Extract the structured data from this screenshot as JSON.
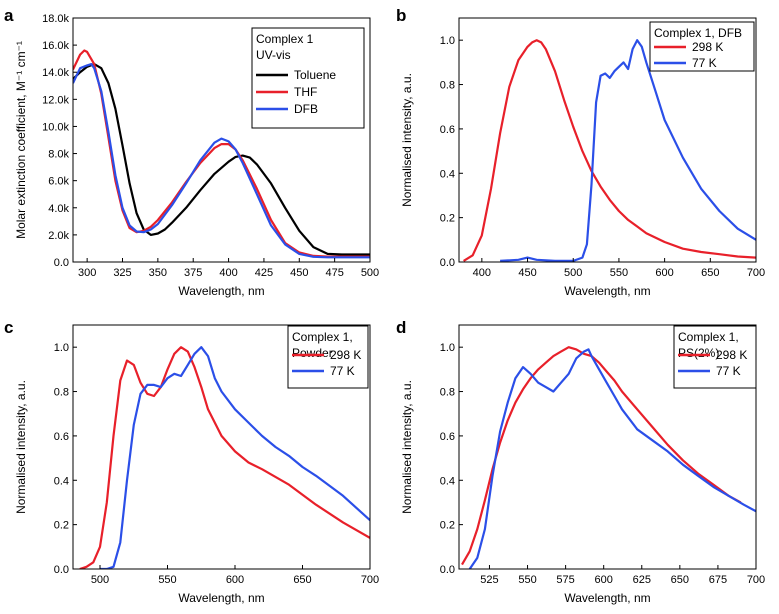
{
  "figure": {
    "panels": [
      {
        "letter": "a",
        "legend_title": [
          "Complex 1",
          "UV-vis"
        ]
      },
      {
        "letter": "b",
        "legend_title": [
          "Complex 1, DFB"
        ]
      },
      {
        "letter": "c",
        "legend_title": [
          "Complex 1,",
          "Powder"
        ]
      },
      {
        "letter": "d",
        "legend_title": [
          "Complex 1,",
          "PS(2%)"
        ]
      }
    ]
  },
  "chart_data": [
    {
      "type": "line",
      "panel": "a",
      "xlabel": "Wavelength, nm",
      "ylabel": "Molar extinction coefficient, M⁻¹ cm⁻¹",
      "xlim": [
        290,
        500
      ],
      "ylim": [
        0,
        18000
      ],
      "xticks": [
        300,
        325,
        350,
        375,
        400,
        425,
        450,
        475,
        500
      ],
      "xtick_labels": [
        "300",
        "325",
        "350",
        "375",
        "400",
        "425",
        "450",
        "475",
        "500"
      ],
      "yticks": [
        0,
        2000,
        4000,
        6000,
        8000,
        10000,
        12000,
        14000,
        16000,
        18000
      ],
      "ytick_labels": [
        "0.0",
        "2.0k",
        "4.0k",
        "6.0k",
        "8.0k",
        "10.0k",
        "12.0k",
        "14.0k",
        "16.0k",
        "18.0k"
      ],
      "legend_position": "top-right",
      "series": [
        {
          "name": "Toluene",
          "color": "#000000",
          "x": [
            290,
            295,
            300,
            305,
            310,
            315,
            320,
            325,
            330,
            335,
            340,
            345,
            350,
            355,
            360,
            370,
            380,
            390,
            400,
            405,
            410,
            415,
            420,
            430,
            440,
            450,
            460,
            470,
            480,
            500
          ],
          "y": [
            13500,
            14000,
            14400,
            14600,
            14300,
            13200,
            11300,
            8600,
            5800,
            3600,
            2400,
            2000,
            2100,
            2400,
            2900,
            4000,
            5300,
            6500,
            7400,
            7750,
            7850,
            7700,
            7200,
            5800,
            4000,
            2300,
            1100,
            600,
            550,
            550
          ]
        },
        {
          "name": "THF",
          "color": "#e8202a",
          "x": [
            290,
            295,
            298,
            300,
            305,
            310,
            315,
            320,
            325,
            330,
            335,
            340,
            345,
            350,
            360,
            370,
            380,
            390,
            395,
            400,
            405,
            410,
            420,
            430,
            440,
            450,
            460,
            470,
            480,
            500
          ],
          "y": [
            14200,
            15300,
            15600,
            15500,
            14600,
            12400,
            9200,
            6000,
            3800,
            2500,
            2200,
            2300,
            2600,
            3100,
            4400,
            5900,
            7300,
            8400,
            8700,
            8700,
            8300,
            7500,
            5400,
            3100,
            1400,
            700,
            450,
            400,
            400,
            400
          ]
        },
        {
          "name": "DFB",
          "color": "#2b4fe8",
          "x": [
            290,
            295,
            300,
            303,
            305,
            310,
            315,
            320,
            325,
            330,
            335,
            340,
            345,
            350,
            360,
            370,
            380,
            390,
            395,
            400,
            405,
            410,
            420,
            430,
            440,
            450,
            460,
            470,
            480,
            500
          ],
          "y": [
            13200,
            14300,
            14500,
            14600,
            14300,
            12600,
            9600,
            6400,
            4000,
            2700,
            2250,
            2200,
            2400,
            2800,
            4200,
            5800,
            7500,
            8800,
            9100,
            8900,
            8300,
            7300,
            5000,
            2700,
            1300,
            600,
            380,
            350,
            350,
            350
          ]
        }
      ]
    },
    {
      "type": "line",
      "panel": "b",
      "xlabel": "Wavelength, nm",
      "ylabel": "Normalised intensity, a.u.",
      "xlim": [
        375,
        700
      ],
      "ylim": [
        0,
        1.1
      ],
      "xticks": [
        400,
        450,
        500,
        550,
        600,
        650,
        700
      ],
      "xtick_labels": [
        "400",
        "450",
        "500",
        "550",
        "600",
        "650",
        "700"
      ],
      "yticks": [
        0,
        0.2,
        0.4,
        0.6,
        0.8,
        1.0
      ],
      "ytick_labels": [
        "0.0",
        "0.2",
        "0.4",
        "0.6",
        "0.8",
        "1.0"
      ],
      "legend_position": "top-right",
      "series": [
        {
          "name": "298 K",
          "color": "#e8202a",
          "x": [
            380,
            390,
            400,
            410,
            420,
            430,
            440,
            450,
            455,
            460,
            465,
            470,
            480,
            490,
            500,
            510,
            520,
            530,
            540,
            550,
            560,
            570,
            580,
            600,
            620,
            640,
            660,
            680,
            700
          ],
          "y": [
            0.005,
            0.03,
            0.12,
            0.33,
            0.58,
            0.79,
            0.91,
            0.97,
            0.99,
            1.0,
            0.99,
            0.96,
            0.86,
            0.73,
            0.61,
            0.5,
            0.41,
            0.34,
            0.28,
            0.23,
            0.19,
            0.16,
            0.13,
            0.09,
            0.06,
            0.045,
            0.035,
            0.025,
            0.02
          ]
        },
        {
          "name": "77 K",
          "color": "#2b4fe8",
          "x": [
            420,
            440,
            450,
            460,
            480,
            500,
            510,
            515,
            520,
            525,
            530,
            535,
            540,
            545,
            550,
            555,
            560,
            565,
            570,
            575,
            580,
            590,
            600,
            620,
            640,
            660,
            680,
            700
          ],
          "y": [
            0.005,
            0.01,
            0.02,
            0.01,
            0.005,
            0.005,
            0.02,
            0.08,
            0.35,
            0.72,
            0.84,
            0.85,
            0.83,
            0.86,
            0.88,
            0.9,
            0.87,
            0.96,
            1.0,
            0.97,
            0.9,
            0.77,
            0.64,
            0.47,
            0.33,
            0.23,
            0.15,
            0.1
          ]
        }
      ]
    },
    {
      "type": "line",
      "panel": "c",
      "xlabel": "Wavelength, nm",
      "ylabel": "Normalised intensity, a.u.",
      "xlim": [
        480,
        700
      ],
      "ylim": [
        0,
        1.1
      ],
      "xticks": [
        500,
        550,
        600,
        650,
        700
      ],
      "xtick_labels": [
        "500",
        "550",
        "600",
        "650",
        "700"
      ],
      "yticks": [
        0,
        0.2,
        0.4,
        0.6,
        0.8,
        1.0
      ],
      "ytick_labels": [
        "0.0",
        "0.2",
        "0.4",
        "0.6",
        "0.8",
        "1.0"
      ],
      "legend_position": "top-right",
      "series": [
        {
          "name": "298 K",
          "color": "#e8202a",
          "x": [
            485,
            490,
            495,
            500,
            505,
            510,
            515,
            520,
            525,
            530,
            535,
            540,
            545,
            550,
            555,
            560,
            565,
            570,
            575,
            580,
            590,
            600,
            610,
            620,
            640,
            660,
            680,
            700
          ],
          "y": [
            0.0,
            0.01,
            0.03,
            0.1,
            0.3,
            0.6,
            0.85,
            0.94,
            0.92,
            0.84,
            0.79,
            0.78,
            0.82,
            0.9,
            0.97,
            1.0,
            0.98,
            0.91,
            0.82,
            0.72,
            0.6,
            0.53,
            0.48,
            0.45,
            0.38,
            0.29,
            0.21,
            0.14
          ]
        },
        {
          "name": "77 K",
          "color": "#2b4fe8",
          "x": [
            500,
            505,
            510,
            515,
            520,
            525,
            530,
            535,
            540,
            545,
            550,
            555,
            560,
            565,
            570,
            575,
            580,
            585,
            590,
            600,
            610,
            620,
            630,
            640,
            650,
            660,
            680,
            700
          ],
          "y": [
            0.0,
            0.0,
            0.01,
            0.12,
            0.4,
            0.65,
            0.79,
            0.83,
            0.83,
            0.82,
            0.86,
            0.88,
            0.87,
            0.92,
            0.97,
            1.0,
            0.96,
            0.86,
            0.8,
            0.72,
            0.66,
            0.6,
            0.55,
            0.51,
            0.46,
            0.42,
            0.33,
            0.22
          ]
        }
      ]
    },
    {
      "type": "line",
      "panel": "d",
      "xlabel": "Wavelength, nm",
      "ylabel": "Normalised intensity, a.u.",
      "xlim": [
        505,
        700
      ],
      "ylim": [
        0,
        1.1
      ],
      "xticks": [
        525,
        550,
        575,
        600,
        625,
        650,
        675,
        700
      ],
      "xtick_labels": [
        "525",
        "550",
        "575",
        "600",
        "625",
        "650",
        "675",
        "700"
      ],
      "yticks": [
        0,
        0.2,
        0.4,
        0.6,
        0.8,
        1.0
      ],
      "ytick_labels": [
        "0.0",
        "0.2",
        "0.4",
        "0.6",
        "0.8",
        "1.0"
      ],
      "legend_position": "top-right",
      "series": [
        {
          "name": "298 K",
          "color": "#e8202a",
          "x": [
            507,
            512,
            517,
            522,
            527,
            532,
            537,
            542,
            547,
            552,
            557,
            562,
            567,
            572,
            577,
            582,
            587,
            592,
            597,
            602,
            607,
            612,
            622,
            632,
            642,
            652,
            662,
            672,
            682,
            690
          ],
          "y": [
            0.02,
            0.08,
            0.18,
            0.31,
            0.45,
            0.57,
            0.67,
            0.75,
            0.81,
            0.86,
            0.9,
            0.93,
            0.96,
            0.98,
            1.0,
            0.99,
            0.97,
            0.96,
            0.93,
            0.89,
            0.85,
            0.8,
            0.72,
            0.64,
            0.56,
            0.49,
            0.43,
            0.38,
            0.33,
            0.3
          ]
        },
        {
          "name": "77 K",
          "color": "#2b4fe8",
          "x": [
            512,
            517,
            522,
            527,
            532,
            537,
            542,
            547,
            552,
            557,
            562,
            567,
            572,
            577,
            582,
            587,
            590,
            592,
            597,
            602,
            607,
            612,
            622,
            632,
            642,
            652,
            662,
            672,
            682,
            692,
            700
          ],
          "y": [
            0.0,
            0.05,
            0.18,
            0.42,
            0.62,
            0.75,
            0.86,
            0.91,
            0.88,
            0.84,
            0.82,
            0.8,
            0.84,
            0.88,
            0.95,
            0.98,
            0.99,
            0.96,
            0.9,
            0.84,
            0.78,
            0.72,
            0.63,
            0.58,
            0.53,
            0.47,
            0.42,
            0.37,
            0.33,
            0.29,
            0.26
          ]
        }
      ]
    }
  ]
}
